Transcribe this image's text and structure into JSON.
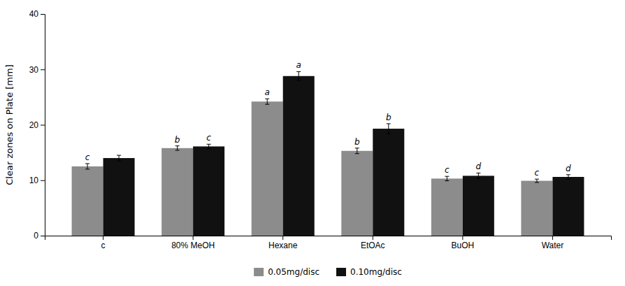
{
  "chart_data": {
    "type": "bar",
    "categories": [
      "c",
      "80% MeOH",
      "Hexane",
      "EtOAc",
      "BuOH",
      "Water"
    ],
    "series": [
      {
        "name": "0.05mg/disc",
        "color": "#8c8c8c",
        "values": [
          12.5,
          15.8,
          24.2,
          15.3,
          10.3,
          9.9
        ],
        "errors": [
          0.5,
          0.4,
          0.5,
          0.5,
          0.4,
          0.3
        ],
        "labels": [
          "c",
          "b",
          "a",
          "b",
          "c",
          "c"
        ]
      },
      {
        "name": "0.10mg/disc",
        "color": "#111111",
        "values": [
          14.0,
          16.1,
          28.8,
          19.3,
          10.8,
          10.6
        ],
        "errors": [
          0.5,
          0.4,
          0.8,
          0.9,
          0.5,
          0.4
        ],
        "labels": [
          null,
          "c",
          "a",
          "b",
          "d",
          "d"
        ]
      }
    ],
    "ylabel": "Clear zones on Plate [mm]",
    "ylim": [
      0,
      40
    ],
    "yticks": [
      0,
      10,
      20,
      30,
      40
    ],
    "grid": false,
    "legend": "bottom"
  }
}
